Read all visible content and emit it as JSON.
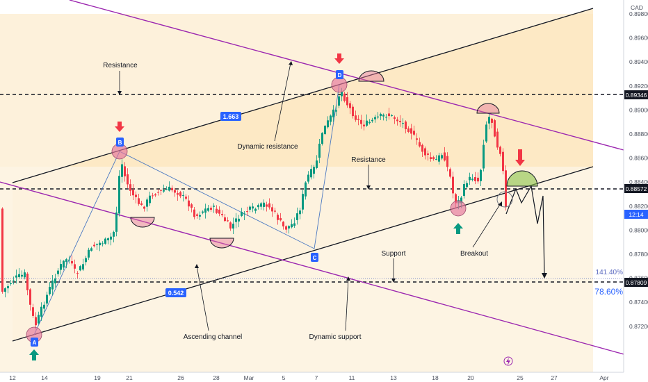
{
  "chart_data": {
    "type": "candlestick",
    "currency_label": "CAD",
    "xlabels": [
      "12",
      "14",
      "19",
      "21",
      "26",
      "28",
      "Mar",
      "5",
      "7",
      "11",
      "13",
      "18",
      "20",
      "25",
      "27",
      "Apr"
    ],
    "yticks": [
      "0.89800",
      "0.89600",
      "0.89400",
      "0.89200",
      "0.89000",
      "0.88800",
      "0.88600",
      "0.88400",
      "0.88200",
      "0.88000",
      "0.87800",
      "0.87600",
      "0.87400",
      "0.87200"
    ],
    "price_tags": {
      "resistance": "0.89346",
      "current": "0.88572",
      "support": "0.87809",
      "countdown": "12:14"
    },
    "fib_labels": {
      "upper": "141.40%",
      "lower": "78.60%"
    },
    "channel_badges": {
      "upper": "1.663",
      "lower": "0.542"
    },
    "points": {
      "a": "A",
      "b": "B",
      "c": "C",
      "d": "D"
    },
    "annotations": {
      "resistance_top": "Resistance",
      "dynamic_resistance": "Dynamic resistance",
      "resistance_mid": "Resistance",
      "support": "Support",
      "breakout": "Breakout",
      "ascending_channel": "Ascending channel",
      "dynamic_support": "Dynamic support"
    },
    "colors": {
      "up": "#089981",
      "down": "#f23645",
      "channel_fill": "#fdeccc",
      "purple_line": "#9c27b0",
      "arrow_green": "#089981",
      "arrow_red": "#f23645",
      "badge": "#2962ff",
      "pink_marker": "#e57399"
    }
  }
}
